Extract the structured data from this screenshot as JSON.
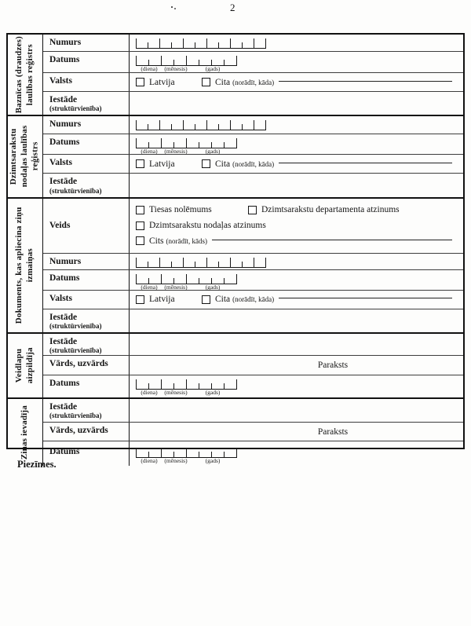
{
  "page": {
    "number": "2",
    "notes_label": "Piezīmes."
  },
  "labels": {
    "numurs": "Numurs",
    "datums": "Datums",
    "valsts": "Valsts",
    "iestade": "Iestāde",
    "iestade_sub": "(struktūrvienība)",
    "veids": "Veids",
    "vards": "Vārds, uzvārds",
    "paraksts": "Paraksts",
    "latvija": "Latvija",
    "cita": "Cita",
    "cita_sub": "(norādīt, kāda)",
    "cits": "Cits",
    "cits_sub": "(norādīt, kāds)",
    "tiesas": "Tiesas nolēmums",
    "dzd_atzinums": "Dzimtsarakstu departamenta atzinums",
    "dzn_atzinums": "Dzimtsarakstu nodaļas atzinums"
  },
  "comb_labels": {
    "diena": "(diena)",
    "menesis": "(mēnesis)",
    "gads": "(gads)"
  },
  "sections": [
    {
      "title": "Baznīcas (draudzes) laulības reģistrs"
    },
    {
      "title": "Dzimtsarakstu nodaļas laulības reģistrs"
    },
    {
      "title": "Dokuments, kas apliecina ziņu izmaiņas"
    },
    {
      "title": "Veidlapu aizpildīja"
    },
    {
      "title": "Ziņas ievadīja"
    }
  ]
}
